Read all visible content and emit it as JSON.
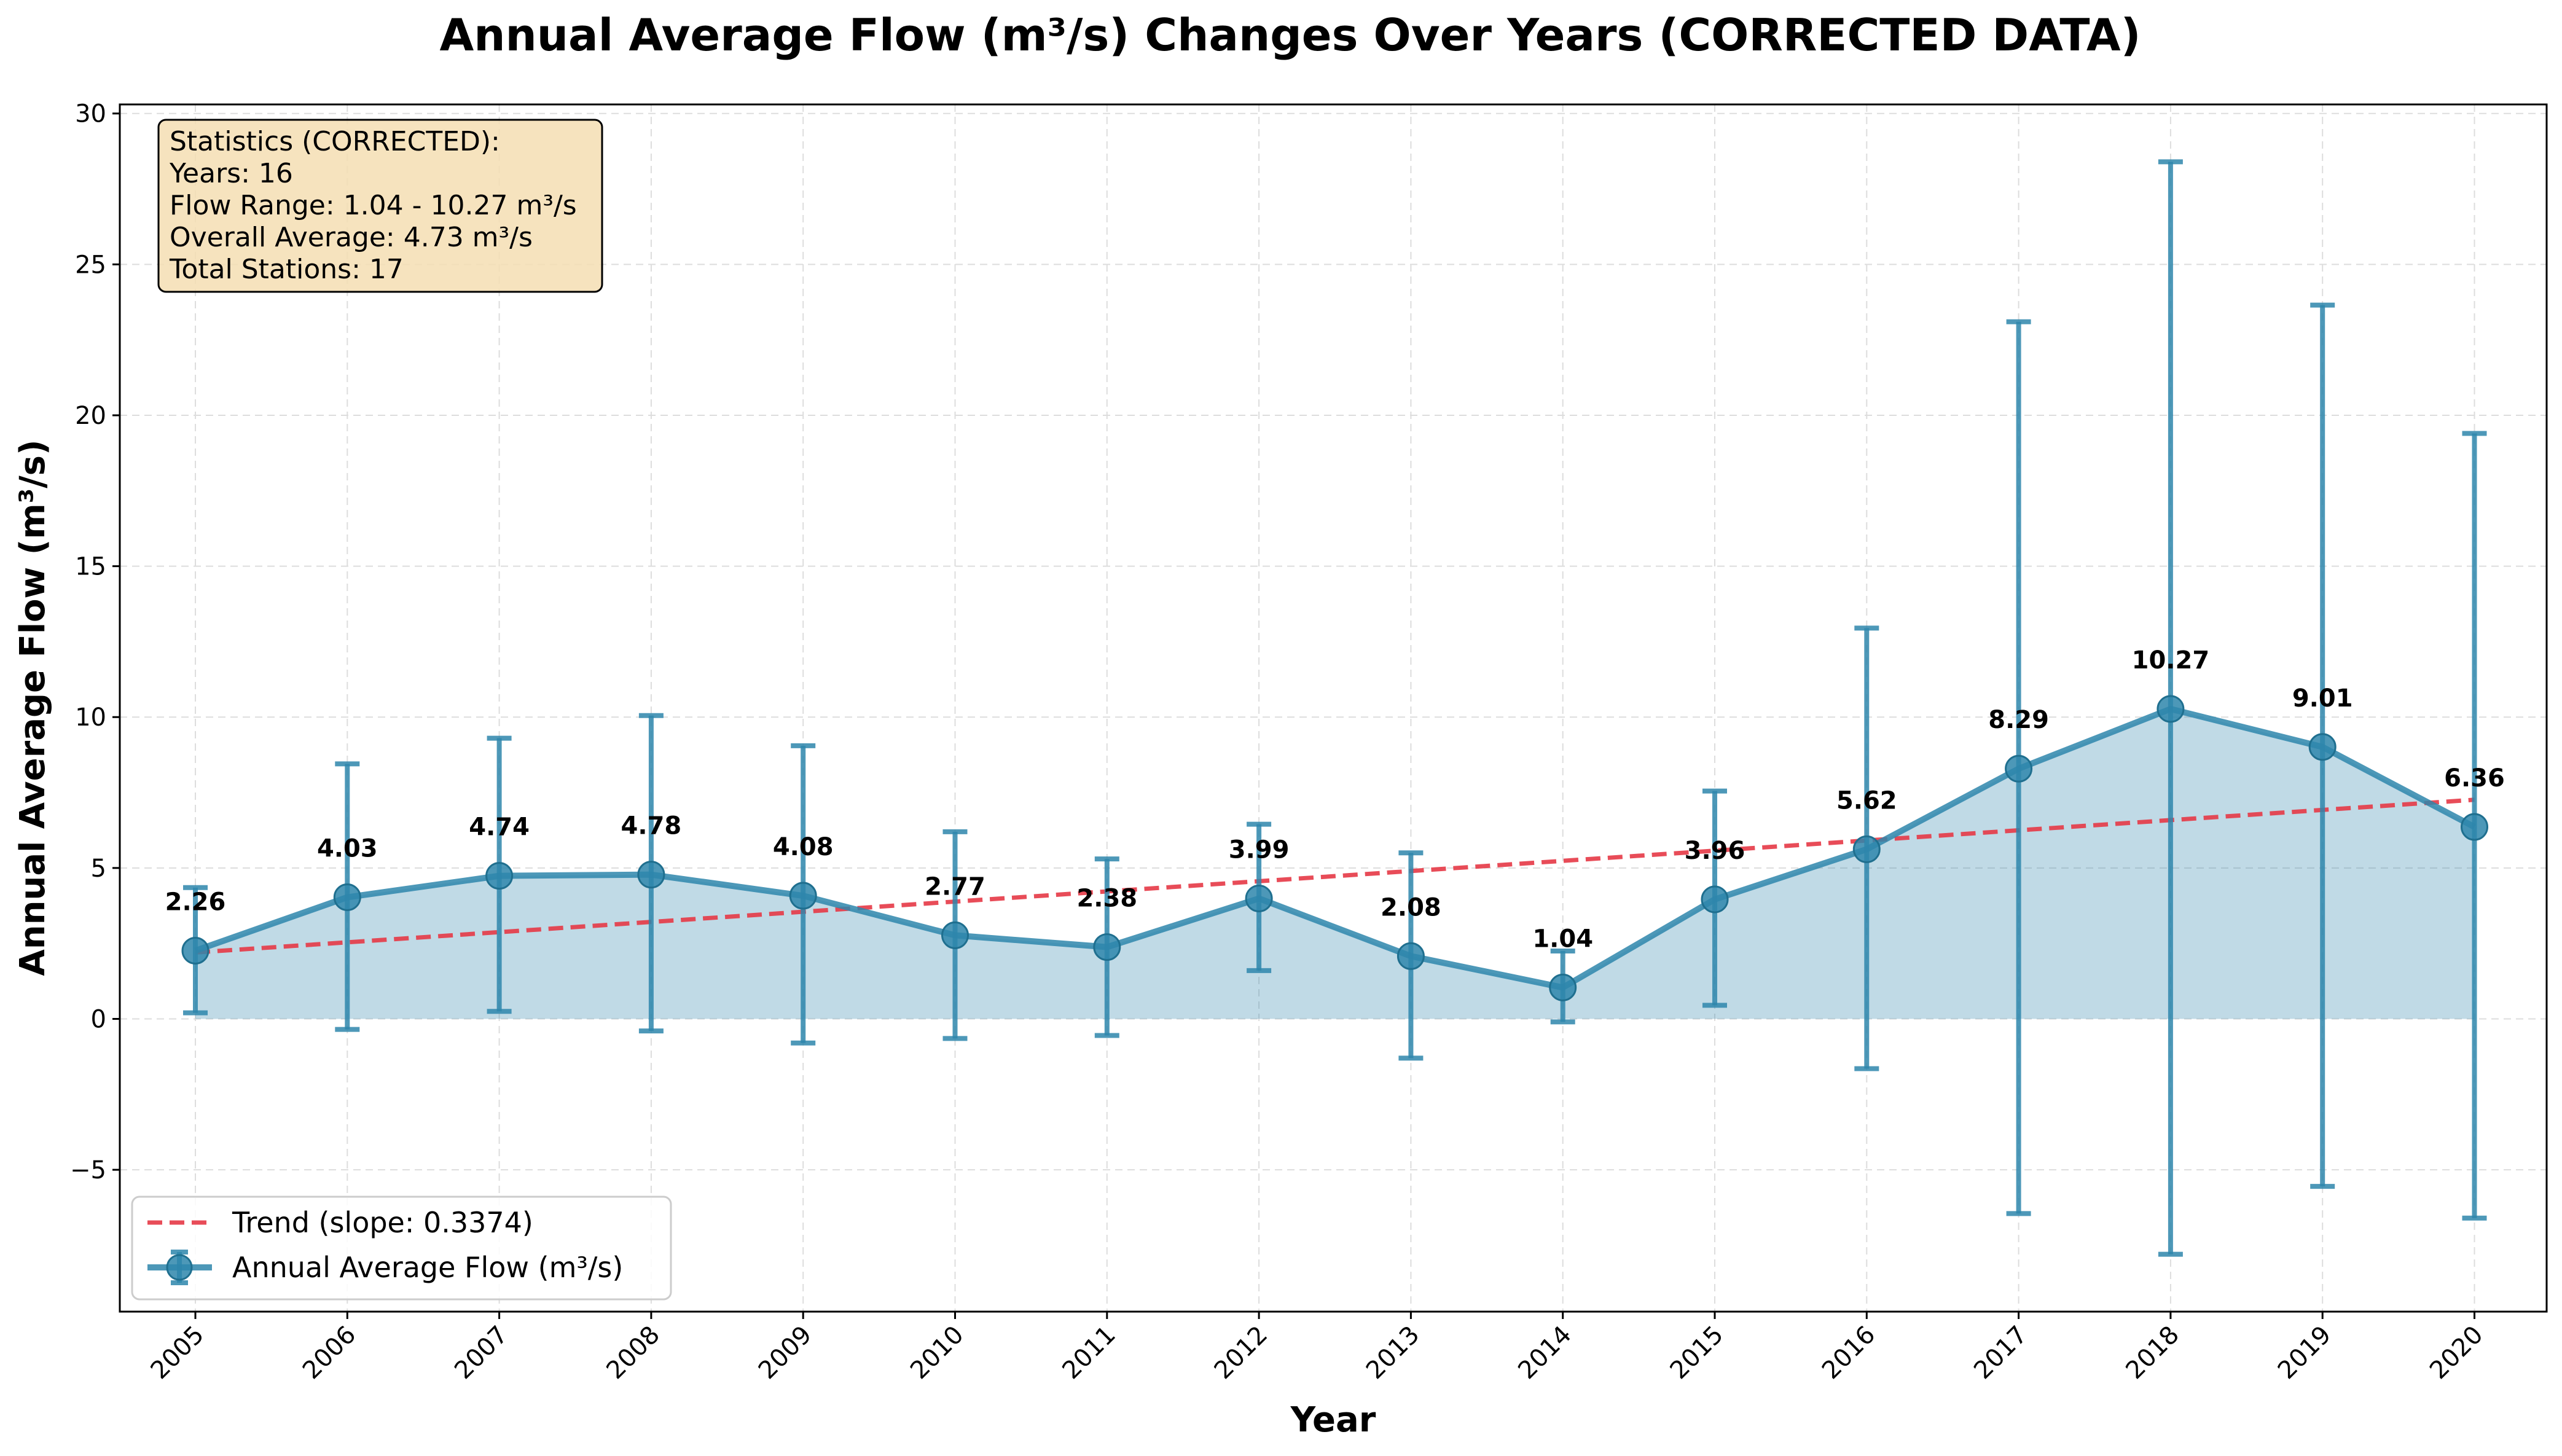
{
  "chart_data": {
    "type": "line",
    "title": "Annual Average Flow (m³/s) Changes Over Years (CORRECTED DATA)",
    "xlabel": "Year",
    "ylabel": "Annual Average Flow (m³/s)",
    "categories": [
      "2005",
      "2006",
      "2007",
      "2008",
      "2009",
      "2010",
      "2011",
      "2012",
      "2013",
      "2014",
      "2015",
      "2016",
      "2017",
      "2018",
      "2019",
      "2020"
    ],
    "series": [
      {
        "name": "Annual Average Flow (m³/s)",
        "color": "#2E86AB",
        "values": [
          2.26,
          4.03,
          4.74,
          4.78,
          4.08,
          2.77,
          2.38,
          3.99,
          2.08,
          1.04,
          3.96,
          5.62,
          8.29,
          10.27,
          9.01,
          6.36
        ],
        "error_lower": [
          0.2,
          -0.35,
          0.25,
          -0.4,
          -0.8,
          -0.65,
          -0.55,
          1.6,
          -1.3,
          -0.1,
          0.45,
          -1.65,
          -6.45,
          -7.8,
          -5.55,
          -6.6
        ],
        "error_upper": [
          4.35,
          8.45,
          9.3,
          10.05,
          9.05,
          6.2,
          5.3,
          6.45,
          5.5,
          2.25,
          7.55,
          12.95,
          23.1,
          28.4,
          23.65,
          19.4
        ]
      }
    ],
    "data_labels": [
      "2.26",
      "4.03",
      "4.74",
      "4.78",
      "4.08",
      "2.77",
      "2.38",
      "3.99",
      "2.08",
      "1.04",
      "3.96",
      "5.62",
      "8.29",
      "10.27",
      "9.01",
      "6.36"
    ],
    "trend": {
      "name": "Trend (slope: 0.3374)",
      "color": "#E63946",
      "start": 2.2,
      "slope": 0.3374
    },
    "ylim": [
      -9.7,
      30.3
    ],
    "yticks": [
      -5,
      0,
      5,
      10,
      15,
      20,
      25,
      30
    ],
    "ytick_labels": [
      "−5",
      "0",
      "5",
      "10",
      "15",
      "20",
      "25",
      "30"
    ],
    "grid": true,
    "legend": {
      "position": "lower-left",
      "entries": [
        "Trend (slope: 0.3374)",
        "Annual Average Flow (m³/s)"
      ]
    },
    "stats_box": {
      "position": "top-left",
      "lines": [
        "Statistics (CORRECTED):",
        "Years: 16",
        "Flow Range: 1.04 - 10.27 m³/s",
        "Overall Average: 4.73 m³/s",
        "Total Stations: 17"
      ]
    }
  }
}
